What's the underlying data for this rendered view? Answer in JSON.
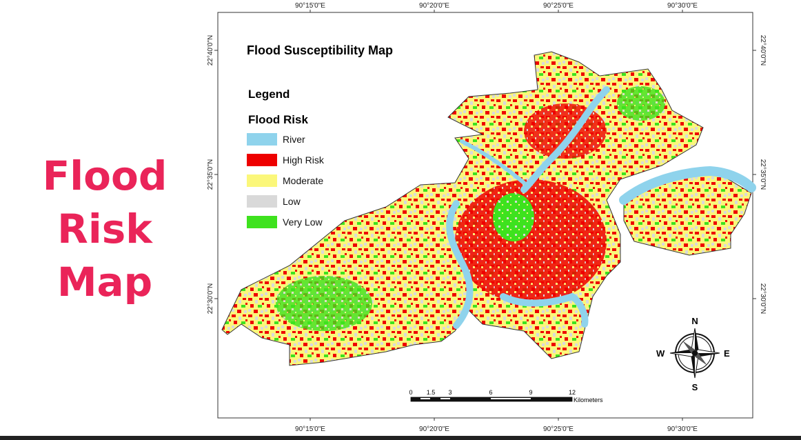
{
  "headline": [
    "Flood",
    "Risk",
    "Map"
  ],
  "map": {
    "title": "Flood Susceptibility Map",
    "legend": {
      "heading": "Legend",
      "subheading": "Flood Risk",
      "items": [
        {
          "label": "River",
          "color": "#8fd3ec"
        },
        {
          "label": "High Risk",
          "color": "#ee0000"
        },
        {
          "label": "Moderate",
          "color": "#fbf77a"
        },
        {
          "label": "Low",
          "color": "#d9d9d9"
        },
        {
          "label": "Very Low",
          "color": "#3ee21e"
        }
      ]
    },
    "longitudes": [
      "90°15'0\"E",
      "90°20'0\"E",
      "90°25'0\"E",
      "90°30'0\"E"
    ],
    "latitudes": [
      "22°40'0\"N",
      "22°35'0\"N",
      "22°30'0\"N"
    ],
    "compass": {
      "north": "N",
      "south": "S",
      "east": "E",
      "west": "W"
    },
    "scale_bar": {
      "labels": [
        "0",
        "1.5",
        "3",
        "6",
        "9",
        "12"
      ],
      "unit": "Kilometers"
    }
  }
}
